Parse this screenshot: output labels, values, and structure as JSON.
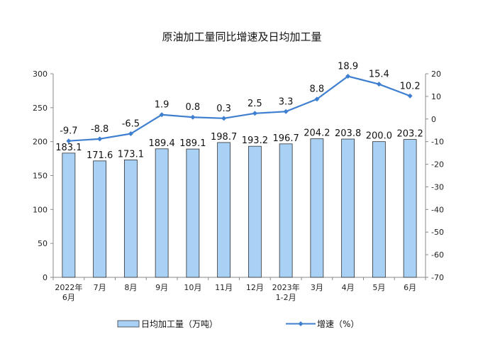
{
  "chart_data": {
    "type": "bar+line",
    "title": "原油加工量同比增速及日均加工量",
    "categories": [
      "2022年\n6月",
      "7月",
      "8月",
      "9月",
      "10月",
      "11月",
      "12月",
      "2023年\n1-2月",
      "3月",
      "4月",
      "5月",
      "6月"
    ],
    "series": [
      {
        "name": "日均加工量（万吨）",
        "type": "bar",
        "axis": "left",
        "color": "#a9d1f5",
        "values": [
          183.1,
          171.6,
          173.1,
          189.4,
          189.1,
          198.7,
          193.2,
          196.7,
          204.2,
          203.8,
          200.0,
          203.2
        ],
        "labels": [
          "183.1",
          "171.6",
          "173.1",
          "189.4",
          "189.1",
          "198.7",
          "193.2",
          "196.7",
          "204.2",
          "203.8",
          "200.0",
          "203.2"
        ]
      },
      {
        "name": "增速（%）",
        "type": "line",
        "axis": "right",
        "color": "#3f7fd0",
        "values": [
          -9.7,
          -8.8,
          -6.5,
          1.9,
          0.8,
          0.3,
          2.5,
          3.3,
          8.8,
          18.9,
          15.4,
          10.2
        ],
        "labels": [
          "-9.7",
          "-8.8",
          "-6.5",
          "1.9",
          "0.8",
          "0.3",
          "2.5",
          "3.3",
          "8.8",
          "18.9",
          "15.4",
          "10.2"
        ]
      }
    ],
    "y_left": {
      "min": 0,
      "max": 300,
      "ticks": [
        "0",
        "50",
        "100",
        "150",
        "200",
        "250",
        "300"
      ]
    },
    "y_right": {
      "min": -70,
      "max": 20,
      "ticks": [
        "-70",
        "-60",
        "-50",
        "-40",
        "-30",
        "-20",
        "-10",
        "0",
        "10",
        "20"
      ]
    },
    "grid": false,
    "legend": "bottom"
  }
}
